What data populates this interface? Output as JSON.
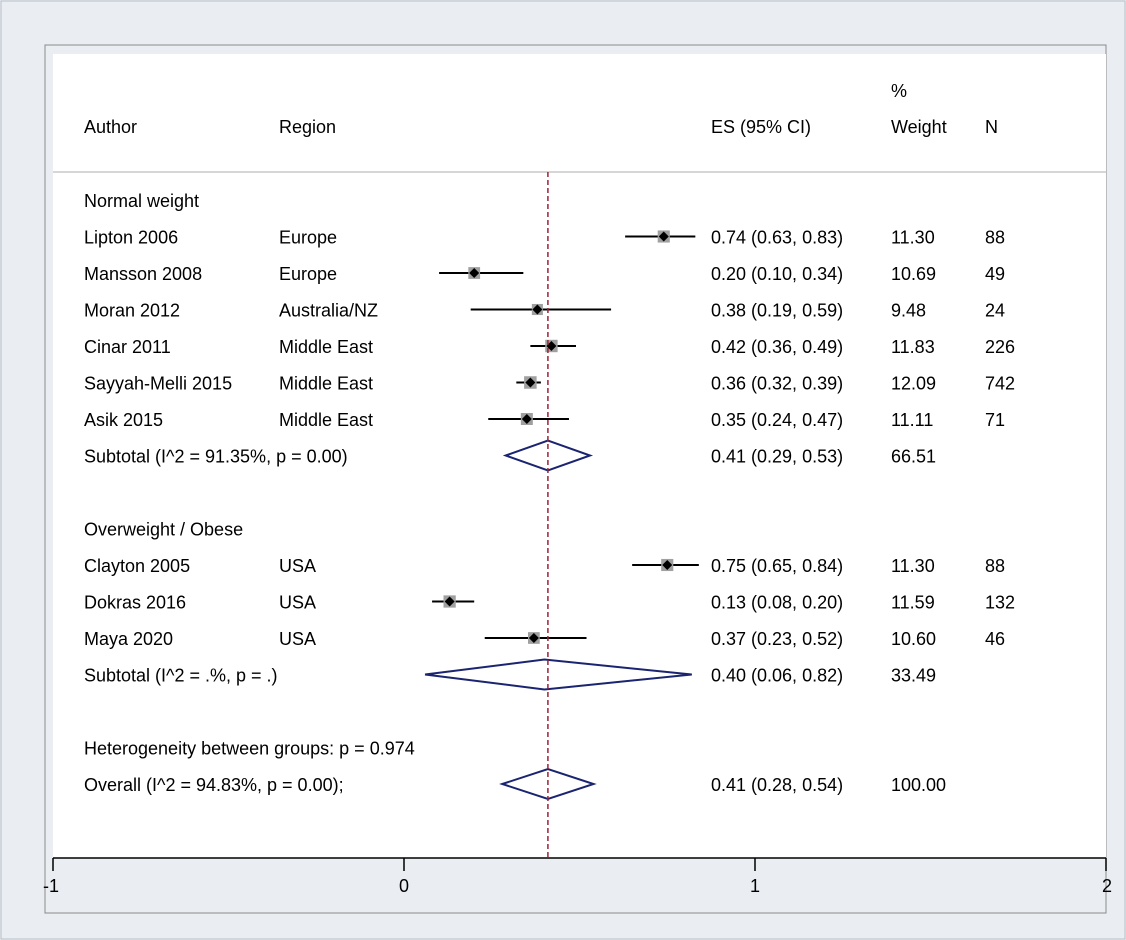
{
  "chart_data": {
    "type": "forest",
    "headers": {
      "author": "Author",
      "region": "Region",
      "es": "ES (95% CI)",
      "weight_top": "%",
      "weight": "Weight",
      "n": "N"
    },
    "xaxis": {
      "ticks": [
        -1,
        0,
        1,
        2
      ],
      "range": [
        -1,
        2
      ]
    },
    "reference_line": 0.41,
    "colors": {
      "reference_line": "#9b2335",
      "diamond": "#1a2470",
      "box": "#a0a0a0",
      "point": "#000000"
    },
    "groups": [
      {
        "label": "Normal weight",
        "studies": [
          {
            "author": "Lipton 2006",
            "region": "Europe",
            "es": 0.74,
            "lo": 0.63,
            "hi": 0.83,
            "es_text": "0.74 (0.63, 0.83)",
            "weight": "11.30",
            "n": "88"
          },
          {
            "author": "Mansson 2008",
            "region": "Europe",
            "es": 0.2,
            "lo": 0.1,
            "hi": 0.34,
            "es_text": "0.20 (0.10, 0.34)",
            "weight": "10.69",
            "n": "49"
          },
          {
            "author": "Moran 2012",
            "region": "Australia/NZ",
            "es": 0.38,
            "lo": 0.19,
            "hi": 0.59,
            "es_text": "0.38 (0.19, 0.59)",
            "weight": "9.48",
            "n": "24"
          },
          {
            "author": "Cinar 2011",
            "region": "Middle East",
            "es": 0.42,
            "lo": 0.36,
            "hi": 0.49,
            "es_text": "0.42 (0.36, 0.49)",
            "weight": "11.83",
            "n": "226"
          },
          {
            "author": "Sayyah-Melli 2015",
            "region": "Middle East",
            "es": 0.36,
            "lo": 0.32,
            "hi": 0.39,
            "es_text": "0.36 (0.32, 0.39)",
            "weight": "12.09",
            "n": "742"
          },
          {
            "author": "Asik 2015",
            "region": "Middle East",
            "es": 0.35,
            "lo": 0.24,
            "hi": 0.47,
            "es_text": "0.35 (0.24, 0.47)",
            "weight": "11.11",
            "n": "71"
          }
        ],
        "subtotal": {
          "label": "Subtotal  (I^2 = 91.35%, p = 0.00)",
          "es": 0.41,
          "lo": 0.29,
          "hi": 0.53,
          "es_text": "0.41 (0.29, 0.53)",
          "weight": "66.51"
        }
      },
      {
        "label": "Overweight / Obese",
        "studies": [
          {
            "author": "Clayton 2005",
            "region": "USA",
            "es": 0.75,
            "lo": 0.65,
            "hi": 0.84,
            "es_text": "0.75 (0.65, 0.84)",
            "weight": "11.30",
            "n": "88"
          },
          {
            "author": "Dokras 2016",
            "region": "USA",
            "es": 0.13,
            "lo": 0.08,
            "hi": 0.2,
            "es_text": "0.13 (0.08, 0.20)",
            "weight": "11.59",
            "n": "132"
          },
          {
            "author": "Maya 2020",
            "region": "USA",
            "es": 0.37,
            "lo": 0.23,
            "hi": 0.52,
            "es_text": "0.37 (0.23, 0.52)",
            "weight": "10.60",
            "n": "46"
          }
        ],
        "subtotal": {
          "label": "Subtotal  (I^2 = .%, p = .)",
          "es": 0.4,
          "lo": 0.06,
          "hi": 0.82,
          "es_text": "0.40 (0.06, 0.82)",
          "weight": "33.49"
        }
      }
    ],
    "heterogeneity": "Heterogeneity between groups: p = 0.974",
    "overall": {
      "label": "Overall  (I^2 = 94.83%, p = 0.00);",
      "es": 0.41,
      "lo": 0.28,
      "hi": 0.54,
      "es_text": "0.41 (0.28, 0.54)",
      "weight": "100.00"
    }
  }
}
